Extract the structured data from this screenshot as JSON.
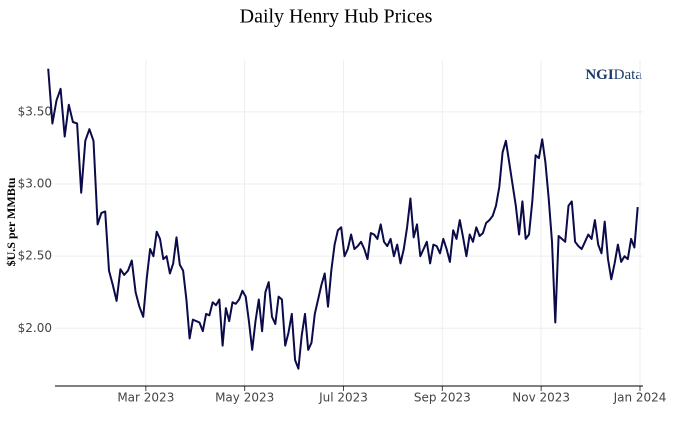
{
  "chart_data": {
    "type": "line",
    "title": "Daily Henry Hub Prices",
    "y_label": "$U.S per MMBtu",
    "logo": [
      "NGI",
      "Data"
    ],
    "color": "#0b0b4a",
    "grid": true,
    "x": [
      "2023-01",
      "2023-01",
      "2023-01",
      "2023-01",
      "2023-01",
      "2023-01",
      "2023-01",
      "2023-01",
      "2023-01",
      "2023-01",
      "2023-01",
      "2023-01",
      "2023-02",
      "2023-02",
      "2023-02",
      "2023-02",
      "2023-02",
      "2023-02",
      "2023-02",
      "2023-02",
      "2023-02",
      "2023-02",
      "2023-02",
      "2023-02",
      "2023-02",
      "2023-03",
      "2023-03",
      "2023-03",
      "2023-03",
      "2023-03",
      "2023-03",
      "2023-03",
      "2023-03",
      "2023-03",
      "2023-03",
      "2023-03",
      "2023-03",
      "2023-03",
      "2023-03",
      "2023-03",
      "2023-04",
      "2023-04",
      "2023-04",
      "2023-04",
      "2023-04",
      "2023-04",
      "2023-04",
      "2023-04",
      "2023-04",
      "2023-04",
      "2023-04",
      "2023-04",
      "2023-04",
      "2023-04",
      "2023-04",
      "2023-05",
      "2023-05",
      "2023-05",
      "2023-05",
      "2023-05",
      "2023-05",
      "2023-05",
      "2023-05",
      "2023-05",
      "2023-05",
      "2023-05",
      "2023-05",
      "2023-05",
      "2023-05",
      "2023-05",
      "2023-06",
      "2023-06",
      "2023-06",
      "2023-06",
      "2023-06",
      "2023-06",
      "2023-06",
      "2023-06",
      "2023-06",
      "2023-06",
      "2023-06",
      "2023-06",
      "2023-06",
      "2023-06",
      "2023-06",
      "2023-07",
      "2023-07",
      "2023-07",
      "2023-07",
      "2023-07",
      "2023-07",
      "2023-07",
      "2023-07",
      "2023-07",
      "2023-07",
      "2023-07",
      "2023-07",
      "2023-07",
      "2023-07",
      "2023-07",
      "2023-08",
      "2023-08",
      "2023-08",
      "2023-08",
      "2023-08",
      "2023-08",
      "2023-08",
      "2023-08",
      "2023-08",
      "2023-08",
      "2023-08",
      "2023-08",
      "2023-08",
      "2023-08",
      "2023-08",
      "2023-09",
      "2023-09",
      "2023-09",
      "2023-09",
      "2023-09",
      "2023-09",
      "2023-09",
      "2023-09",
      "2023-09",
      "2023-09",
      "2023-09",
      "2023-09",
      "2023-09",
      "2023-09",
      "2023-09",
      "2023-10",
      "2023-10",
      "2023-10",
      "2023-10",
      "2023-10",
      "2023-10",
      "2023-10",
      "2023-10",
      "2023-10",
      "2023-10",
      "2023-10",
      "2023-10",
      "2023-10",
      "2023-10",
      "2023-10",
      "2023-11",
      "2023-11",
      "2023-11",
      "2023-11",
      "2023-11",
      "2023-11",
      "2023-11",
      "2023-11",
      "2023-11",
      "2023-11",
      "2023-11",
      "2023-11",
      "2023-11",
      "2023-11",
      "2023-11",
      "2023-12",
      "2023-12",
      "2023-12",
      "2023-12",
      "2023-12",
      "2023-12",
      "2023-12",
      "2023-12",
      "2023-12",
      "2023-12",
      "2023-12",
      "2023-12",
      "2023-12",
      "2023-12",
      "2023-12"
    ],
    "values": [
      3.8,
      3.42,
      3.58,
      3.66,
      3.33,
      3.55,
      3.43,
      3.42,
      2.94,
      3.3,
      3.38,
      3.3,
      2.72,
      2.8,
      2.81,
      2.4,
      2.3,
      2.19,
      2.41,
      2.37,
      2.4,
      2.47,
      2.25,
      2.15,
      2.08,
      2.35,
      2.55,
      2.5,
      2.67,
      2.62,
      2.48,
      2.5,
      2.38,
      2.45,
      2.63,
      2.44,
      2.4,
      2.2,
      1.93,
      2.06,
      2.05,
      2.04,
      1.98,
      2.1,
      2.09,
      2.18,
      2.16,
      2.2,
      1.88,
      2.14,
      2.05,
      2.18,
      2.17,
      2.2,
      2.26,
      2.22,
      2.05,
      1.85,
      2.05,
      2.2,
      1.98,
      2.25,
      2.32,
      2.08,
      2.03,
      2.22,
      2.2,
      1.88,
      1.97,
      2.1,
      1.78,
      1.72,
      1.95,
      2.1,
      1.85,
      1.9,
      2.1,
      2.2,
      2.3,
      2.38,
      2.15,
      2.4,
      2.58,
      2.68,
      2.7,
      2.5,
      2.55,
      2.65,
      2.55,
      2.57,
      2.6,
      2.55,
      2.48,
      2.66,
      2.65,
      2.62,
      2.72,
      2.6,
      2.57,
      2.62,
      2.5,
      2.58,
      2.45,
      2.55,
      2.7,
      2.9,
      2.63,
      2.72,
      2.5,
      2.55,
      2.6,
      2.45,
      2.58,
      2.57,
      2.52,
      2.62,
      2.55,
      2.46,
      2.68,
      2.62,
      2.75,
      2.63,
      2.5,
      2.65,
      2.6,
      2.7,
      2.64,
      2.66,
      2.73,
      2.75,
      2.78,
      2.85,
      2.98,
      3.22,
      3.3,
      3.15,
      3.0,
      2.85,
      2.65,
      2.88,
      2.62,
      2.65,
      2.88,
      3.2,
      3.18,
      3.31,
      3.15,
      2.9,
      2.6,
      2.04,
      2.64,
      2.62,
      2.6,
      2.85,
      2.88,
      2.6,
      2.57,
      2.55,
      2.6,
      2.65,
      2.62,
      2.75,
      2.58,
      2.52,
      2.74,
      2.48,
      2.34,
      2.45,
      2.58,
      2.46,
      2.5,
      2.48,
      2.62,
      2.56,
      2.84
    ],
    "xlim": [
      "2023-01",
      "2024-01"
    ],
    "xticks": [
      {
        "value": "2023-03",
        "label": "Mar 2023"
      },
      {
        "value": "2023-05",
        "label": "May 2023"
      },
      {
        "value": "2023-07",
        "label": "Jul 2023"
      },
      {
        "value": "2023-09",
        "label": "Sep 2023"
      },
      {
        "value": "2023-11",
        "label": "Nov 2023"
      },
      {
        "value": "2024-01",
        "label": "Jan 2024"
      }
    ],
    "ylim": [
      1.6,
      3.86
    ],
    "yticks": [
      {
        "value": 2,
        "label": "$2.00"
      },
      {
        "value": 2.5,
        "label": "$2.50"
      },
      {
        "value": 3,
        "label": "$3.00"
      },
      {
        "value": 3.5,
        "label": "$3.50"
      }
    ]
  }
}
